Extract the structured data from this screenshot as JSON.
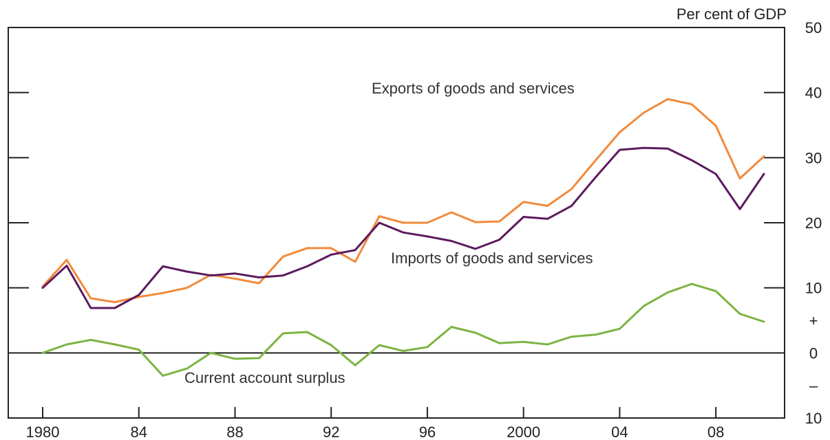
{
  "chart_data": {
    "type": "line",
    "unit_label": "Per cent of GDP",
    "x_tick_labels": [
      "1980",
      "84",
      "88",
      "92",
      "96",
      "2000",
      "04",
      "08"
    ],
    "x_tick_values": [
      1980,
      1984,
      1988,
      1992,
      1996,
      2000,
      2004,
      2008
    ],
    "y_tick_labels": [
      "10",
      "–",
      "0",
      "+",
      "10",
      "20",
      "30",
      "40",
      "50"
    ],
    "y_tick_values": [
      -10,
      -5,
      0,
      5,
      10,
      20,
      30,
      40,
      50
    ],
    "xlim": [
      1980,
      2010
    ],
    "ylim": [
      -10,
      50
    ],
    "grid": false,
    "x": [
      1980,
      1981,
      1982,
      1983,
      1984,
      1985,
      1986,
      1987,
      1988,
      1989,
      1990,
      1991,
      1992,
      1993,
      1994,
      1995,
      1996,
      1997,
      1998,
      1999,
      2000,
      2001,
      2002,
      2003,
      2004,
      2005,
      2006,
      2007,
      2008,
      2009,
      2010
    ],
    "series": [
      {
        "name": "Exports of goods and services",
        "color": "#f28a3a",
        "values": [
          10.2,
          14.3,
          8.4,
          7.8,
          8.6,
          9.2,
          10.0,
          12.0,
          11.4,
          10.7,
          14.8,
          16.1,
          16.1,
          14.0,
          21.0,
          20.0,
          20.0,
          21.6,
          20.1,
          20.2,
          23.2,
          22.6,
          25.2,
          29.6,
          33.9,
          36.9,
          39.0,
          38.2,
          34.9,
          26.8,
          30.2
        ]
      },
      {
        "name": "Imports of goods and services",
        "color": "#5b1a5e",
        "values": [
          10.0,
          13.4,
          6.9,
          6.9,
          8.9,
          13.3,
          12.5,
          11.9,
          12.2,
          11.6,
          11.9,
          13.3,
          15.1,
          15.8,
          20.0,
          18.5,
          17.9,
          17.2,
          16.0,
          17.4,
          20.9,
          20.6,
          22.6,
          27.0,
          31.2,
          31.5,
          31.4,
          29.6,
          27.5,
          22.1,
          27.5
        ]
      },
      {
        "name": "Current account surplus",
        "color": "#7cb342",
        "values": [
          0.0,
          1.3,
          2.0,
          1.3,
          0.5,
          -3.5,
          -2.4,
          0.0,
          -0.9,
          -0.8,
          3.0,
          3.2,
          1.2,
          -1.9,
          1.2,
          0.3,
          0.9,
          4.0,
          3.1,
          1.5,
          1.7,
          1.3,
          2.5,
          2.8,
          3.7,
          7.2,
          9.3,
          10.6,
          9.5,
          6.0,
          4.8
        ]
      }
    ]
  }
}
